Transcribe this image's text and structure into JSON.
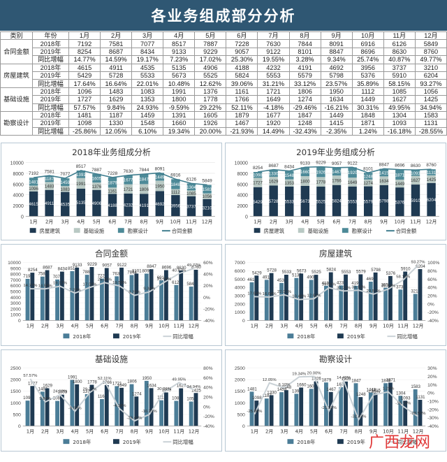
{
  "banner_title": "各业务组成部分分析",
  "table": {
    "corner": "类别",
    "year_col": "年份",
    "months": [
      "1月",
      "2月",
      "3月",
      "4月",
      "5月",
      "6月",
      "7月",
      "8月",
      "9月",
      "10月",
      "11月",
      "12月"
    ],
    "groups": [
      {
        "name": "合同金额",
        "rows": [
          {
            "label": "2018年",
            "values": [
              "7192",
              "7581",
              "7077",
              "8517",
              "7887",
              "7228",
              "7630",
              "7844",
              "8091",
              "6916",
              "6126",
              "5849"
            ]
          },
          {
            "label": "2019年",
            "values": [
              "8254",
              "8687",
              "8434",
              "9133",
              "9229",
              "9057",
              "9122",
              "8101",
              "8847",
              "8696",
              "8630",
              "8760"
            ]
          },
          {
            "label": "同比增幅",
            "values": [
              "14.77%",
              "14.59%",
              "19.17%",
              "7.23%",
              "17.02%",
              "25.30%",
              "19.55%",
              "3.28%",
              "9.34%",
              "25.74%",
              "40.87%",
              "49.77%"
            ]
          }
        ]
      },
      {
        "name": "房屋建筑",
        "rows": [
          {
            "label": "2018年",
            "values": [
              "4615",
              "4911",
              "4535",
              "5135",
              "4906",
              "4188",
              "4232",
              "4191",
              "4692",
              "3956",
              "3737",
              "3210"
            ]
          },
          {
            "label": "2019年",
            "values": [
              "5429",
              "5728",
              "5533",
              "5673",
              "5525",
              "5824",
              "5553",
              "5579",
              "5798",
              "5376",
              "5910",
              "6204"
            ]
          },
          {
            "label": "同比增幅",
            "values": [
              "17.64%",
              "16.64%",
              "22.01%",
              "10.48%",
              "12.62%",
              "39.06%",
              "31.21%",
              "33.12%",
              "23.57%",
              "35.89%",
              "58.15%",
              "93.27%"
            ]
          }
        ]
      },
      {
        "name": "基础设施",
        "rows": [
          {
            "label": "2018年",
            "values": [
              "1096",
              "1483",
              "1083",
              "1991",
              "1376",
              "1161",
              "1721",
              "1806",
              "1950",
              "1112",
              "1085",
              "1056"
            ]
          },
          {
            "label": "2019年",
            "values": [
              "1727",
              "1629",
              "1353",
              "1800",
              "1778",
              "1766",
              "1649",
              "1274",
              "1634",
              "1449",
              "1627",
              "1425"
            ]
          },
          {
            "label": "同比增幅",
            "values": [
              "57.57%",
              "9.84%",
              "24.93%",
              "-9.59%",
              "29.22%",
              "52.11%",
              "-4.18%",
              "-29.46%",
              "-16.21%",
              "30.31%",
              "49.95%",
              "34.94%"
            ]
          }
        ]
      },
      {
        "name": "勘察设计",
        "rows": [
          {
            "label": "2018年",
            "values": [
              "1481",
              "1187",
              "1459",
              "1391",
              "1605",
              "1879",
              "1677",
              "1847",
              "1449",
              "1848",
              "1304",
              "1583"
            ]
          },
          {
            "label": "2019年",
            "values": [
              "1098",
              "1330",
              "1548",
              "1660",
              "1926",
              "1467",
              "1920",
              "1248",
              "1415",
              "1871",
              "1093",
              "1131"
            ]
          },
          {
            "label": "同比增幅",
            "values": [
              "-25.86%",
              "12.05%",
              "6.10%",
              "19.34%",
              "20.00%",
              "-21.93%",
              "14.49%",
              "-32.43%",
              "-2.35%",
              "1.24%",
              "-16.18%",
              "-28.55%"
            ]
          }
        ]
      }
    ]
  },
  "chart_data": [
    {
      "type": "bar",
      "stacked": true,
      "title": "2018年业务组成分析",
      "categories": [
        "1月",
        "2月",
        "3月",
        "4月",
        "5月",
        "6月",
        "7月",
        "8月",
        "9月",
        "10月",
        "11月",
        "12月"
      ],
      "series": [
        {
          "name": "房屋建筑",
          "values": [
            4615,
            4911,
            4535,
            5135,
            4906,
            4188,
            4232,
            4191,
            4692,
            3956,
            3737,
            3210
          ],
          "color": "#1f3a52"
        },
        {
          "name": "基础设施",
          "values": [
            1096,
            1483,
            1083,
            1991,
            1376,
            1161,
            1721,
            1806,
            1950,
            1112,
            1085,
            1056
          ],
          "color": "#b9c9c4"
        },
        {
          "name": "勘察设计",
          "values": [
            1481,
            1187,
            1459,
            1391,
            1605,
            1879,
            1677,
            1847,
            1449,
            1848,
            1304,
            1583
          ],
          "color": "#4d8a98"
        },
        {
          "name": "合同金额",
          "type": "line",
          "values": [
            7192,
            7581,
            7077,
            8517,
            7887,
            7228,
            7630,
            7844,
            8091,
            6916,
            6126,
            5849
          ],
          "color": "#3f7d8e"
        }
      ],
      "ylim": [
        0,
        10000
      ]
    },
    {
      "type": "bar",
      "stacked": true,
      "title": "2019年业务组成分析",
      "categories": [
        "1月",
        "2月",
        "3月",
        "4月",
        "5月",
        "6月",
        "7月",
        "8月",
        "9月",
        "10月",
        "11月",
        "12月"
      ],
      "series": [
        {
          "name": "房屋建筑",
          "values": [
            5429,
            5728,
            5533,
            5673,
            5525,
            5824,
            5553,
            5579,
            5798,
            5376,
            5910,
            6204
          ],
          "color": "#1f3a52"
        },
        {
          "name": "基础设施",
          "values": [
            1727,
            1629,
            1353,
            1800,
            1778,
            1766,
            1649,
            1274,
            1634,
            1449,
            1627,
            1425
          ],
          "color": "#b9c9c4"
        },
        {
          "name": "勘察设计",
          "values": [
            1098,
            1330,
            1548,
            1660,
            1926,
            1467,
            1920,
            1248,
            1415,
            1871,
            1093,
            1131
          ],
          "color": "#4d8a98"
        },
        {
          "name": "合同金额",
          "type": "line",
          "values": [
            8254,
            8687,
            8434,
            9133,
            9229,
            9057,
            9122,
            8101,
            8847,
            8696,
            8630,
            8760
          ],
          "color": "#3f7d8e"
        }
      ],
      "ylim": [
        0,
        10000
      ]
    },
    {
      "type": "bar",
      "title": "合同金额",
      "categories": [
        "1月",
        "2月",
        "3月",
        "4月",
        "5月",
        "6月",
        "7月",
        "8月",
        "9月",
        "10月",
        "11月",
        "12月"
      ],
      "series": [
        {
          "name": "2018年",
          "values": [
            7192,
            7581,
            7077,
            8517,
            7887,
            7228,
            7630,
            7844,
            8091,
            6916,
            6126,
            5849
          ],
          "color": "#4b7d97"
        },
        {
          "name": "2019年",
          "values": [
            8254,
            8687,
            8434,
            9133,
            9229,
            9057,
            9122,
            8101,
            8847,
            8696,
            8630,
            8760
          ],
          "color": "#1f3a52"
        },
        {
          "name": "同比增幅",
          "type": "line",
          "axis": "right",
          "values": [
            14.77,
            14.59,
            19.17,
            7.23,
            17.02,
            25.3,
            19.55,
            3.28,
            9.34,
            25.74,
            40.87,
            49.77
          ],
          "color": "#c9d1d6"
        }
      ],
      "ylim": [
        0,
        10000
      ],
      "y2lim": [
        -40,
        60
      ],
      "yticks": [
        "0",
        "1000",
        "2000",
        "3000",
        "4000",
        "5000",
        "6000",
        "7000",
        "8000",
        "9000",
        "10000"
      ],
      "y2ticks": [
        "-40%",
        "-20%",
        "0%",
        "20%",
        "40%",
        "60%"
      ]
    },
    {
      "type": "bar",
      "title": "房屋建筑",
      "categories": [
        "1月",
        "2月",
        "3月",
        "4月",
        "5月",
        "6月",
        "7月",
        "8月",
        "9月",
        "10月",
        "11月",
        "12月"
      ],
      "series": [
        {
          "name": "2018年",
          "values": [
            4615,
            4911,
            4535,
            5135,
            4906,
            4188,
            4232,
            4191,
            4692,
            3956,
            3737,
            3210
          ],
          "color": "#4b7d97"
        },
        {
          "name": "2019年",
          "values": [
            5429,
            5728,
            5533,
            5673,
            5525,
            5824,
            5553,
            5579,
            5798,
            5376,
            5910,
            6204
          ],
          "color": "#1f3a52"
        },
        {
          "name": "同比增幅",
          "type": "line",
          "axis": "right",
          "values": [
            17.64,
            16.64,
            22.01,
            10.48,
            12.62,
            39.06,
            31.21,
            33.12,
            23.57,
            35.89,
            58.15,
            93.27
          ],
          "color": "#c9d1d6"
        }
      ],
      "ylim": [
        0,
        7000
      ],
      "y2lim": [
        -40,
        100
      ],
      "yticks": [
        "0",
        "1000",
        "2000",
        "3000",
        "4000",
        "5000",
        "6000",
        "7000"
      ],
      "y2ticks": [
        "-40%",
        "-20%",
        "0%",
        "20%",
        "40%",
        "60%",
        "80%",
        "100%"
      ]
    },
    {
      "type": "bar",
      "title": "基础设施",
      "categories": [
        "1月",
        "2月",
        "3月",
        "4月",
        "5月",
        "6月",
        "7月",
        "8月",
        "9月",
        "10月",
        "11月",
        "12月"
      ],
      "series": [
        {
          "name": "2018年",
          "values": [
            1096,
            1483,
            1083,
            1991,
            1376,
            1161,
            1721,
            1806,
            1950,
            1112,
            1085,
            1056
          ],
          "color": "#4b7d97"
        },
        {
          "name": "2019年",
          "values": [
            1727,
            1629,
            1353,
            1800,
            1778,
            1766,
            1649,
            1274,
            1634,
            1449,
            1627,
            1425
          ],
          "color": "#1f3a52"
        },
        {
          "name": "同比增幅",
          "type": "line",
          "axis": "right",
          "values": [
            57.57,
            9.84,
            24.93,
            -9.59,
            29.22,
            52.11,
            -4.18,
            -29.46,
            -16.21,
            30.31,
            49.95,
            34.94
          ],
          "color": "#c9d1d6"
        }
      ],
      "ylim": [
        0,
        2500
      ],
      "y2lim": [
        -40,
        80
      ],
      "yticks": [
        "0",
        "500",
        "1000",
        "1500",
        "2000",
        "2500"
      ],
      "y2ticks": [
        "-40%",
        "-20%",
        "0%",
        "20%",
        "40%",
        "60%",
        "80%"
      ]
    },
    {
      "type": "bar",
      "title": "勘察设计",
      "categories": [
        "1月",
        "2月",
        "3月",
        "4月",
        "5月",
        "6月",
        "7月",
        "8月",
        "9月",
        "10月",
        "11月",
        "12月"
      ],
      "series": [
        {
          "name": "2018年",
          "values": [
            1481,
            1187,
            1459,
            1391,
            1605,
            1879,
            1677,
            1847,
            1449,
            1848,
            1304,
            1583
          ],
          "color": "#4b7d97"
        },
        {
          "name": "2019年",
          "values": [
            1098,
            1330,
            1548,
            1660,
            1926,
            1467,
            1920,
            1248,
            1415,
            1871,
            1093,
            1131
          ],
          "color": "#1f3a52"
        },
        {
          "name": "同比增幅",
          "type": "line",
          "axis": "right",
          "values": [
            -25.86,
            12.05,
            6.1,
            19.34,
            20.0,
            -21.93,
            14.49,
            -32.43,
            -2.35,
            1.24,
            -16.18,
            -28.55
          ],
          "color": "#c9d1d6"
        }
      ],
      "ylim": [
        0,
        2500
      ],
      "y2lim": [
        -40,
        30
      ],
      "yticks": [
        "0",
        "500",
        "1000",
        "1500",
        "2000",
        "2500"
      ],
      "y2ticks": [
        "-40%",
        "-30%",
        "-20%",
        "-10%",
        "0%",
        "10%",
        "20%",
        "30%"
      ]
    }
  ],
  "watermark": "广西龙网"
}
